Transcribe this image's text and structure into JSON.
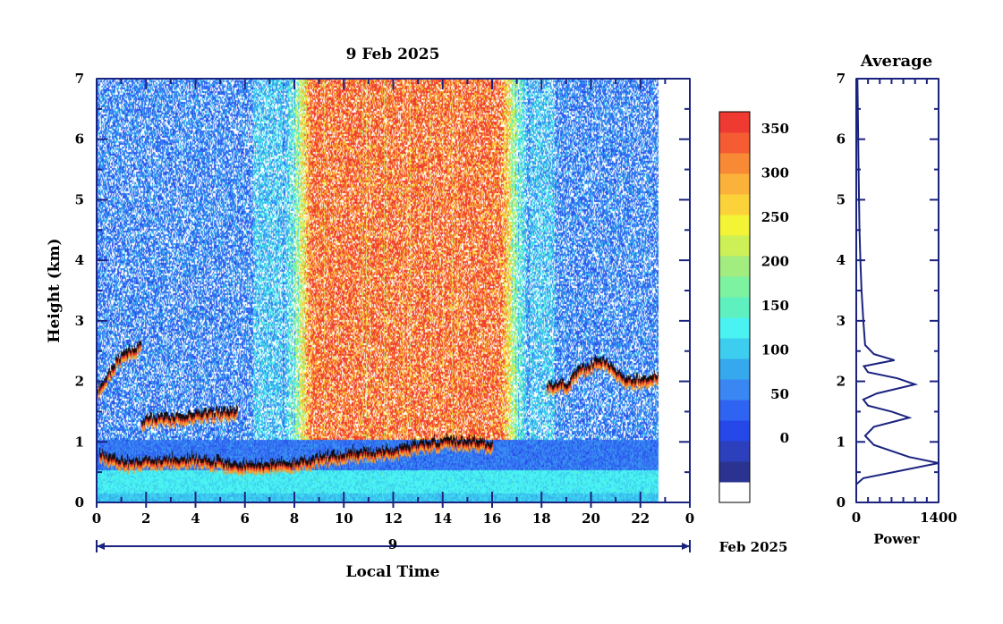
{
  "chart_data": [
    {
      "type": "heatmap",
      "title": "9 Feb 2025",
      "xlabel": "Local Time",
      "ylabel": "Height (km)",
      "xlim": [
        0,
        24
      ],
      "ylim": [
        0,
        7
      ],
      "x_ticks": [
        "0",
        "2",
        "4",
        "6",
        "8",
        "10",
        "12",
        "14",
        "16",
        "18",
        "20",
        "22",
        "0"
      ],
      "y_ticks": [
        "0",
        "1",
        "2",
        "3",
        "4",
        "5",
        "6",
        "7"
      ],
      "data_end_hour": 22.7,
      "date_axis": {
        "day_label": "9",
        "month_label": "Feb 2025"
      },
      "colorbar": {
        "ticks": [
          "0",
          "50",
          "100",
          "150",
          "200",
          "250",
          "300",
          "350"
        ],
        "range": [
          0,
          380
        ],
        "colors": [
          "#ffffff",
          "#2b3390",
          "#2c3fbd",
          "#2648e8",
          "#2f64f2",
          "#3a86f2",
          "#36a8ee",
          "#3ccdef",
          "#4af2f2",
          "#5ff0c0",
          "#7df2a0",
          "#a2ec80",
          "#ccf055",
          "#f4f436",
          "#fcd23a",
          "#fbb23a",
          "#f88a36",
          "#f55c34",
          "#ee3a30"
        ]
      },
      "layers": [
        {
          "name": "boundary-layer",
          "points": [
            [
              0,
              0.5
            ],
            [
              4,
              0.4
            ],
            [
              8,
              0.35
            ],
            [
              12,
              0.45
            ],
            [
              16,
              0.55
            ],
            [
              20,
              0.85
            ],
            [
              22.7,
              0.9
            ]
          ]
        },
        {
          "name": "lower-aerosol-top",
          "points": [
            [
              0.1,
              0.8
            ],
            [
              1.2,
              0.65
            ],
            [
              2.5,
              0.7
            ],
            [
              4,
              0.72
            ],
            [
              6,
              0.6
            ],
            [
              8,
              0.65
            ],
            [
              10,
              0.8
            ],
            [
              12,
              0.85
            ],
            [
              13,
              0.95
            ],
            [
              14,
              1.0
            ],
            [
              15,
              1.0
            ],
            [
              16,
              0.95
            ]
          ]
        },
        {
          "name": "upper-layer-early",
          "points": [
            [
              0,
              1.85
            ],
            [
              0.4,
              2.05
            ],
            [
              0.8,
              2.35
            ],
            [
              1.8,
              2.6
            ]
          ]
        },
        {
          "name": "residual-layer",
          "points": [
            [
              1.8,
              1.25
            ],
            [
              2,
              1.4
            ],
            [
              3,
              1.4
            ],
            [
              4,
              1.45
            ],
            [
              5,
              1.5
            ],
            [
              5.7,
              1.5
            ]
          ]
        },
        {
          "name": "evening-layer",
          "points": [
            [
              18.2,
              1.95
            ],
            [
              19,
              1.95
            ],
            [
              19.5,
              2.2
            ],
            [
              20.5,
              2.35
            ],
            [
              21.5,
              2.0
            ],
            [
              22.7,
              2.1
            ]
          ]
        }
      ],
      "daytime_noise_hours": [
        7.5,
        17.5
      ]
    },
    {
      "type": "line",
      "title": "Average",
      "xlabel": "Power",
      "ylabel": "",
      "xlim": [
        0,
        1400
      ],
      "ylim": [
        0,
        7
      ],
      "x_ticks": [
        "0",
        "1400"
      ],
      "y_ticks": [
        "0",
        "1",
        "2",
        "3",
        "4",
        "5",
        "6",
        "7"
      ],
      "series": [
        {
          "x": [
            0,
            120,
            1400,
            900,
            300,
            150,
            300,
            700,
            900,
            600,
            200,
            120,
            350,
            1000,
            700,
            200,
            130,
            650,
            300,
            150,
            120,
            90,
            70,
            55,
            40,
            30,
            20
          ],
          "y": [
            0.3,
            0.4,
            0.65,
            0.75,
            0.95,
            1.1,
            1.25,
            1.35,
            1.4,
            1.5,
            1.6,
            1.7,
            1.8,
            1.95,
            2.05,
            2.15,
            2.25,
            2.35,
            2.45,
            2.6,
            3.0,
            3.5,
            4.0,
            4.5,
            5.5,
            6.2,
            7.0
          ]
        }
      ]
    }
  ]
}
